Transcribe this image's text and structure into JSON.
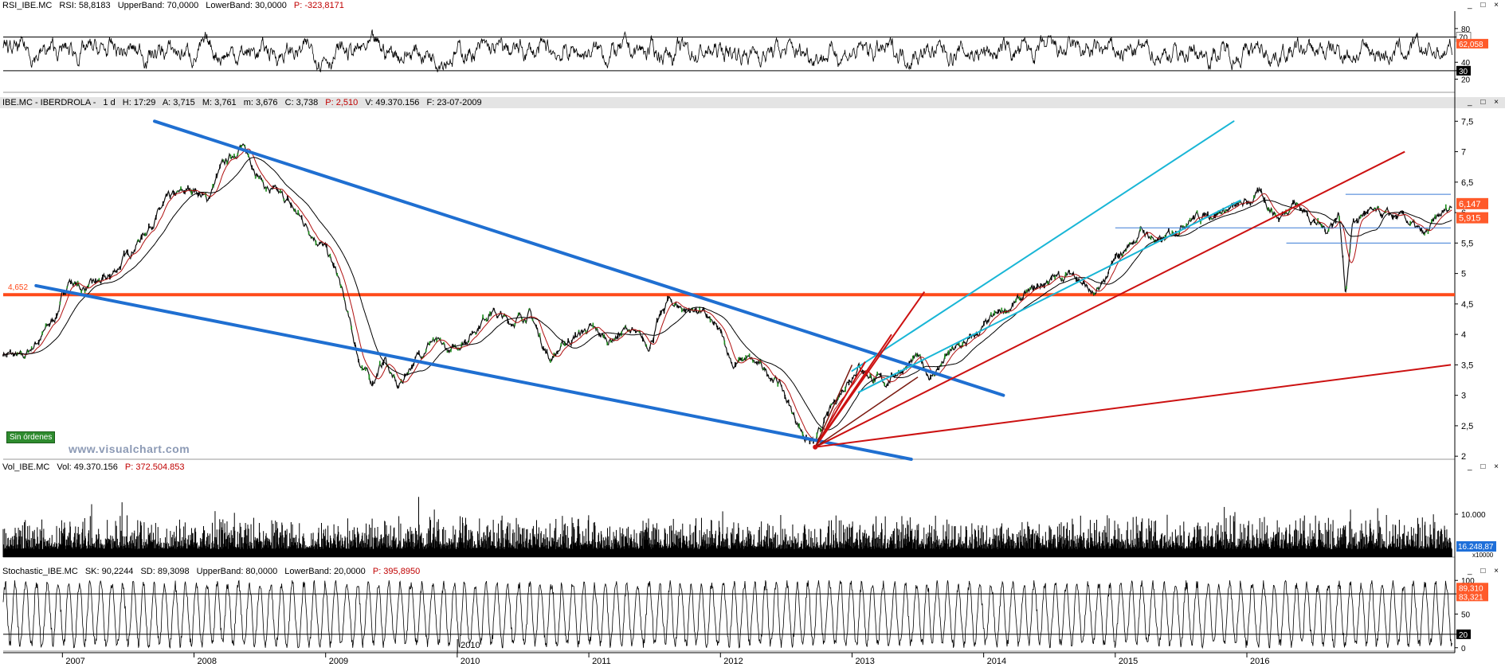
{
  "rsi_header": {
    "name": "RSI_IBE.MC",
    "rsi": "RSI: 58,8183",
    "upper": "UpperBand: 70,0000",
    "lower": "LowerBand: 30,0000",
    "p": "P: -323,8171"
  },
  "price_header": {
    "name": "IBE.MC - IBERDROLA -",
    "tf": "1 d",
    "h": "H: 17:29",
    "a": "A: 3,715",
    "m": "M: 3,761",
    "mm": "m: 3,676",
    "c": "C: 3,738",
    "p": "P: 2,510",
    "v": "V: 49.370.156",
    "f": "F: 23-07-2009"
  },
  "vol_header": {
    "name": "Vol_IBE.MC",
    "vol": "Vol: 49.370.156",
    "p": "P: 372.504.853"
  },
  "stoch_header": {
    "name": "Stochastic_IBE.MC",
    "sk": "SK: 90,2244",
    "sd": "SD: 89,3098",
    "upper": "UpperBand: 80,0000",
    "lower": "LowerBand: 20,0000",
    "p": "P: 395,8950"
  },
  "window_buttons": "_ □ ×",
  "order_status": "Sin órdenes",
  "watermark": "www.visualchart.com",
  "support_label": "4,652",
  "colors": {
    "channel": "#1f6fd1",
    "support": "#ff4a1a",
    "fan": "#cc1111",
    "uptrend": "#19b6d6",
    "ma_fast": "#b01010",
    "ma_slow": "#000000",
    "badge": "#ff5a2a"
  },
  "chart_data": {
    "type": "line",
    "symbol": "IBE.MC",
    "years": [
      "2007",
      "2008",
      "2009",
      "2010",
      "2011",
      "2012",
      "2013",
      "2014",
      "2015",
      "2016"
    ],
    "extra_x_label": "2010",
    "rsi": {
      "ticks": [
        "80",
        "70",
        "40",
        "30",
        "20"
      ],
      "levels": [
        70,
        30
      ],
      "badges": [
        "70",
        "62,058",
        "30"
      ],
      "ylim": [
        10,
        95
      ]
    },
    "price": {
      "ylim": [
        1.95,
        7.7
      ],
      "ticks": [
        "7,5",
        "7",
        "6,5",
        "6",
        "5,5",
        "5",
        "4,5",
        "4",
        "3,5",
        "3",
        "2,5",
        "2"
      ],
      "badges": [
        "6,147",
        "5,915"
      ],
      "support": 4.652,
      "series": [
        {
          "x": 2006.55,
          "y": 3.7
        },
        {
          "x": 2006.7,
          "y": 3.6
        },
        {
          "x": 2006.85,
          "y": 4.0
        },
        {
          "x": 2006.95,
          "y": 4.3
        },
        {
          "x": 2007.05,
          "y": 4.9
        },
        {
          "x": 2007.15,
          "y": 4.75
        },
        {
          "x": 2007.35,
          "y": 4.9
        },
        {
          "x": 2007.6,
          "y": 5.6
        },
        {
          "x": 2007.8,
          "y": 6.2
        },
        {
          "x": 2008.0,
          "y": 6.4
        },
        {
          "x": 2008.1,
          "y": 6.2
        },
        {
          "x": 2008.2,
          "y": 6.7
        },
        {
          "x": 2008.35,
          "y": 7.1
        },
        {
          "x": 2008.45,
          "y": 6.8
        },
        {
          "x": 2008.55,
          "y": 6.4
        },
        {
          "x": 2008.7,
          "y": 6.2
        },
        {
          "x": 2008.85,
          "y": 5.8
        },
        {
          "x": 2009.0,
          "y": 5.4
        },
        {
          "x": 2009.1,
          "y": 4.9
        },
        {
          "x": 2009.25,
          "y": 3.6
        },
        {
          "x": 2009.35,
          "y": 3.2
        },
        {
          "x": 2009.45,
          "y": 3.6
        },
        {
          "x": 2009.55,
          "y": 3.1
        },
        {
          "x": 2009.65,
          "y": 3.5
        },
        {
          "x": 2009.8,
          "y": 3.9
        },
        {
          "x": 2009.95,
          "y": 3.7
        },
        {
          "x": 2010.1,
          "y": 4.0
        },
        {
          "x": 2010.25,
          "y": 4.4
        },
        {
          "x": 2010.4,
          "y": 4.2
        },
        {
          "x": 2010.55,
          "y": 4.35
        },
        {
          "x": 2010.7,
          "y": 3.6
        },
        {
          "x": 2010.85,
          "y": 3.9
        },
        {
          "x": 2011.0,
          "y": 4.1
        },
        {
          "x": 2011.15,
          "y": 3.9
        },
        {
          "x": 2011.3,
          "y": 4.1
        },
        {
          "x": 2011.45,
          "y": 3.8
        },
        {
          "x": 2011.6,
          "y": 4.55
        },
        {
          "x": 2011.75,
          "y": 4.4
        },
        {
          "x": 2011.85,
          "y": 4.4
        },
        {
          "x": 2012.0,
          "y": 4.0
        },
        {
          "x": 2012.1,
          "y": 3.5
        },
        {
          "x": 2012.2,
          "y": 3.6
        },
        {
          "x": 2012.35,
          "y": 3.4
        },
        {
          "x": 2012.45,
          "y": 3.2
        },
        {
          "x": 2012.55,
          "y": 2.7
        },
        {
          "x": 2012.65,
          "y": 2.3
        },
        {
          "x": 2012.72,
          "y": 2.2
        },
        {
          "x": 2012.8,
          "y": 2.6
        },
        {
          "x": 2012.95,
          "y": 3.2
        },
        {
          "x": 2013.05,
          "y": 3.5
        },
        {
          "x": 2013.15,
          "y": 3.3
        },
        {
          "x": 2013.25,
          "y": 3.2
        },
        {
          "x": 2013.35,
          "y": 3.4
        },
        {
          "x": 2013.5,
          "y": 3.6
        },
        {
          "x": 2013.6,
          "y": 3.3
        },
        {
          "x": 2013.75,
          "y": 3.7
        },
        {
          "x": 2013.9,
          "y": 3.9
        },
        {
          "x": 2014.1,
          "y": 4.3
        },
        {
          "x": 2014.3,
          "y": 4.6
        },
        {
          "x": 2014.5,
          "y": 4.9
        },
        {
          "x": 2014.7,
          "y": 5.0
        },
        {
          "x": 2014.85,
          "y": 4.6
        },
        {
          "x": 2015.0,
          "y": 5.2
        },
        {
          "x": 2015.2,
          "y": 5.7
        },
        {
          "x": 2015.35,
          "y": 5.5
        },
        {
          "x": 2015.55,
          "y": 5.9
        },
        {
          "x": 2015.75,
          "y": 6.0
        },
        {
          "x": 2015.95,
          "y": 6.1
        },
        {
          "x": 2016.1,
          "y": 6.3
        },
        {
          "x": 2016.25,
          "y": 5.9
        },
        {
          "x": 2016.35,
          "y": 6.2
        },
        {
          "x": 2016.5,
          "y": 5.9
        },
        {
          "x": 2016.6,
          "y": 5.7
        },
        {
          "x": 2016.7,
          "y": 6.0
        },
        {
          "x": 2016.75,
          "y": 4.7
        },
        {
          "x": 2016.8,
          "y": 5.8
        },
        {
          "x": 2016.9,
          "y": 6.0
        },
        {
          "x": 2017.05,
          "y": 5.95
        },
        {
          "x": 2017.2,
          "y": 5.9
        },
        {
          "x": 2017.35,
          "y": 5.6
        },
        {
          "x": 2017.45,
          "y": 5.9
        },
        {
          "x": 2017.55,
          "y": 6.1
        }
      ],
      "channel_upper": [
        {
          "x": 2007.7,
          "y": 7.5
        },
        {
          "x": 2014.15,
          "y": 3.0
        }
      ],
      "channel_lower": [
        {
          "x": 2006.8,
          "y": 4.8
        },
        {
          "x": 2013.45,
          "y": 1.95
        }
      ],
      "uptrend_upper": [
        {
          "x": 2013.0,
          "y": 3.4
        },
        {
          "x": 2015.9,
          "y": 7.5
        }
      ],
      "uptrend_lower": [
        {
          "x": 2013.05,
          "y": 3.05
        },
        {
          "x": 2015.95,
          "y": 6.2
        }
      ],
      "horizontal_lines": [
        {
          "x1": 2015.0,
          "x2": 2017.55,
          "y": 5.75
        },
        {
          "x1": 2016.3,
          "x2": 2017.55,
          "y": 5.5
        },
        {
          "x1": 2016.75,
          "x2": 2017.55,
          "y": 6.3
        }
      ],
      "fan_origin": {
        "x": 2012.72,
        "y": 2.15
      },
      "fan_ends": [
        {
          "x": 2013.3,
          "y": 4.0
        },
        {
          "x": 2013.55,
          "y": 4.7
        },
        {
          "x": 2013.1,
          "y": 3.55
        },
        {
          "x": 2017.2,
          "y": 7.0
        },
        {
          "x": 2017.55,
          "y": 3.5
        },
        {
          "x": 2013.5,
          "y": 3.3
        },
        {
          "x": 2013.0,
          "y": 3.5
        }
      ]
    },
    "volume": {
      "ticks": [
        "10.000"
      ],
      "badge": "16.248,87",
      "unit": "x10000"
    },
    "stochastic": {
      "ticks": [
        "100",
        "80",
        "50",
        "20",
        "0"
      ],
      "levels": [
        80,
        20
      ],
      "badges": [
        "89,310",
        "83,321",
        "20"
      ],
      "ylim": [
        -5,
        105
      ]
    }
  }
}
